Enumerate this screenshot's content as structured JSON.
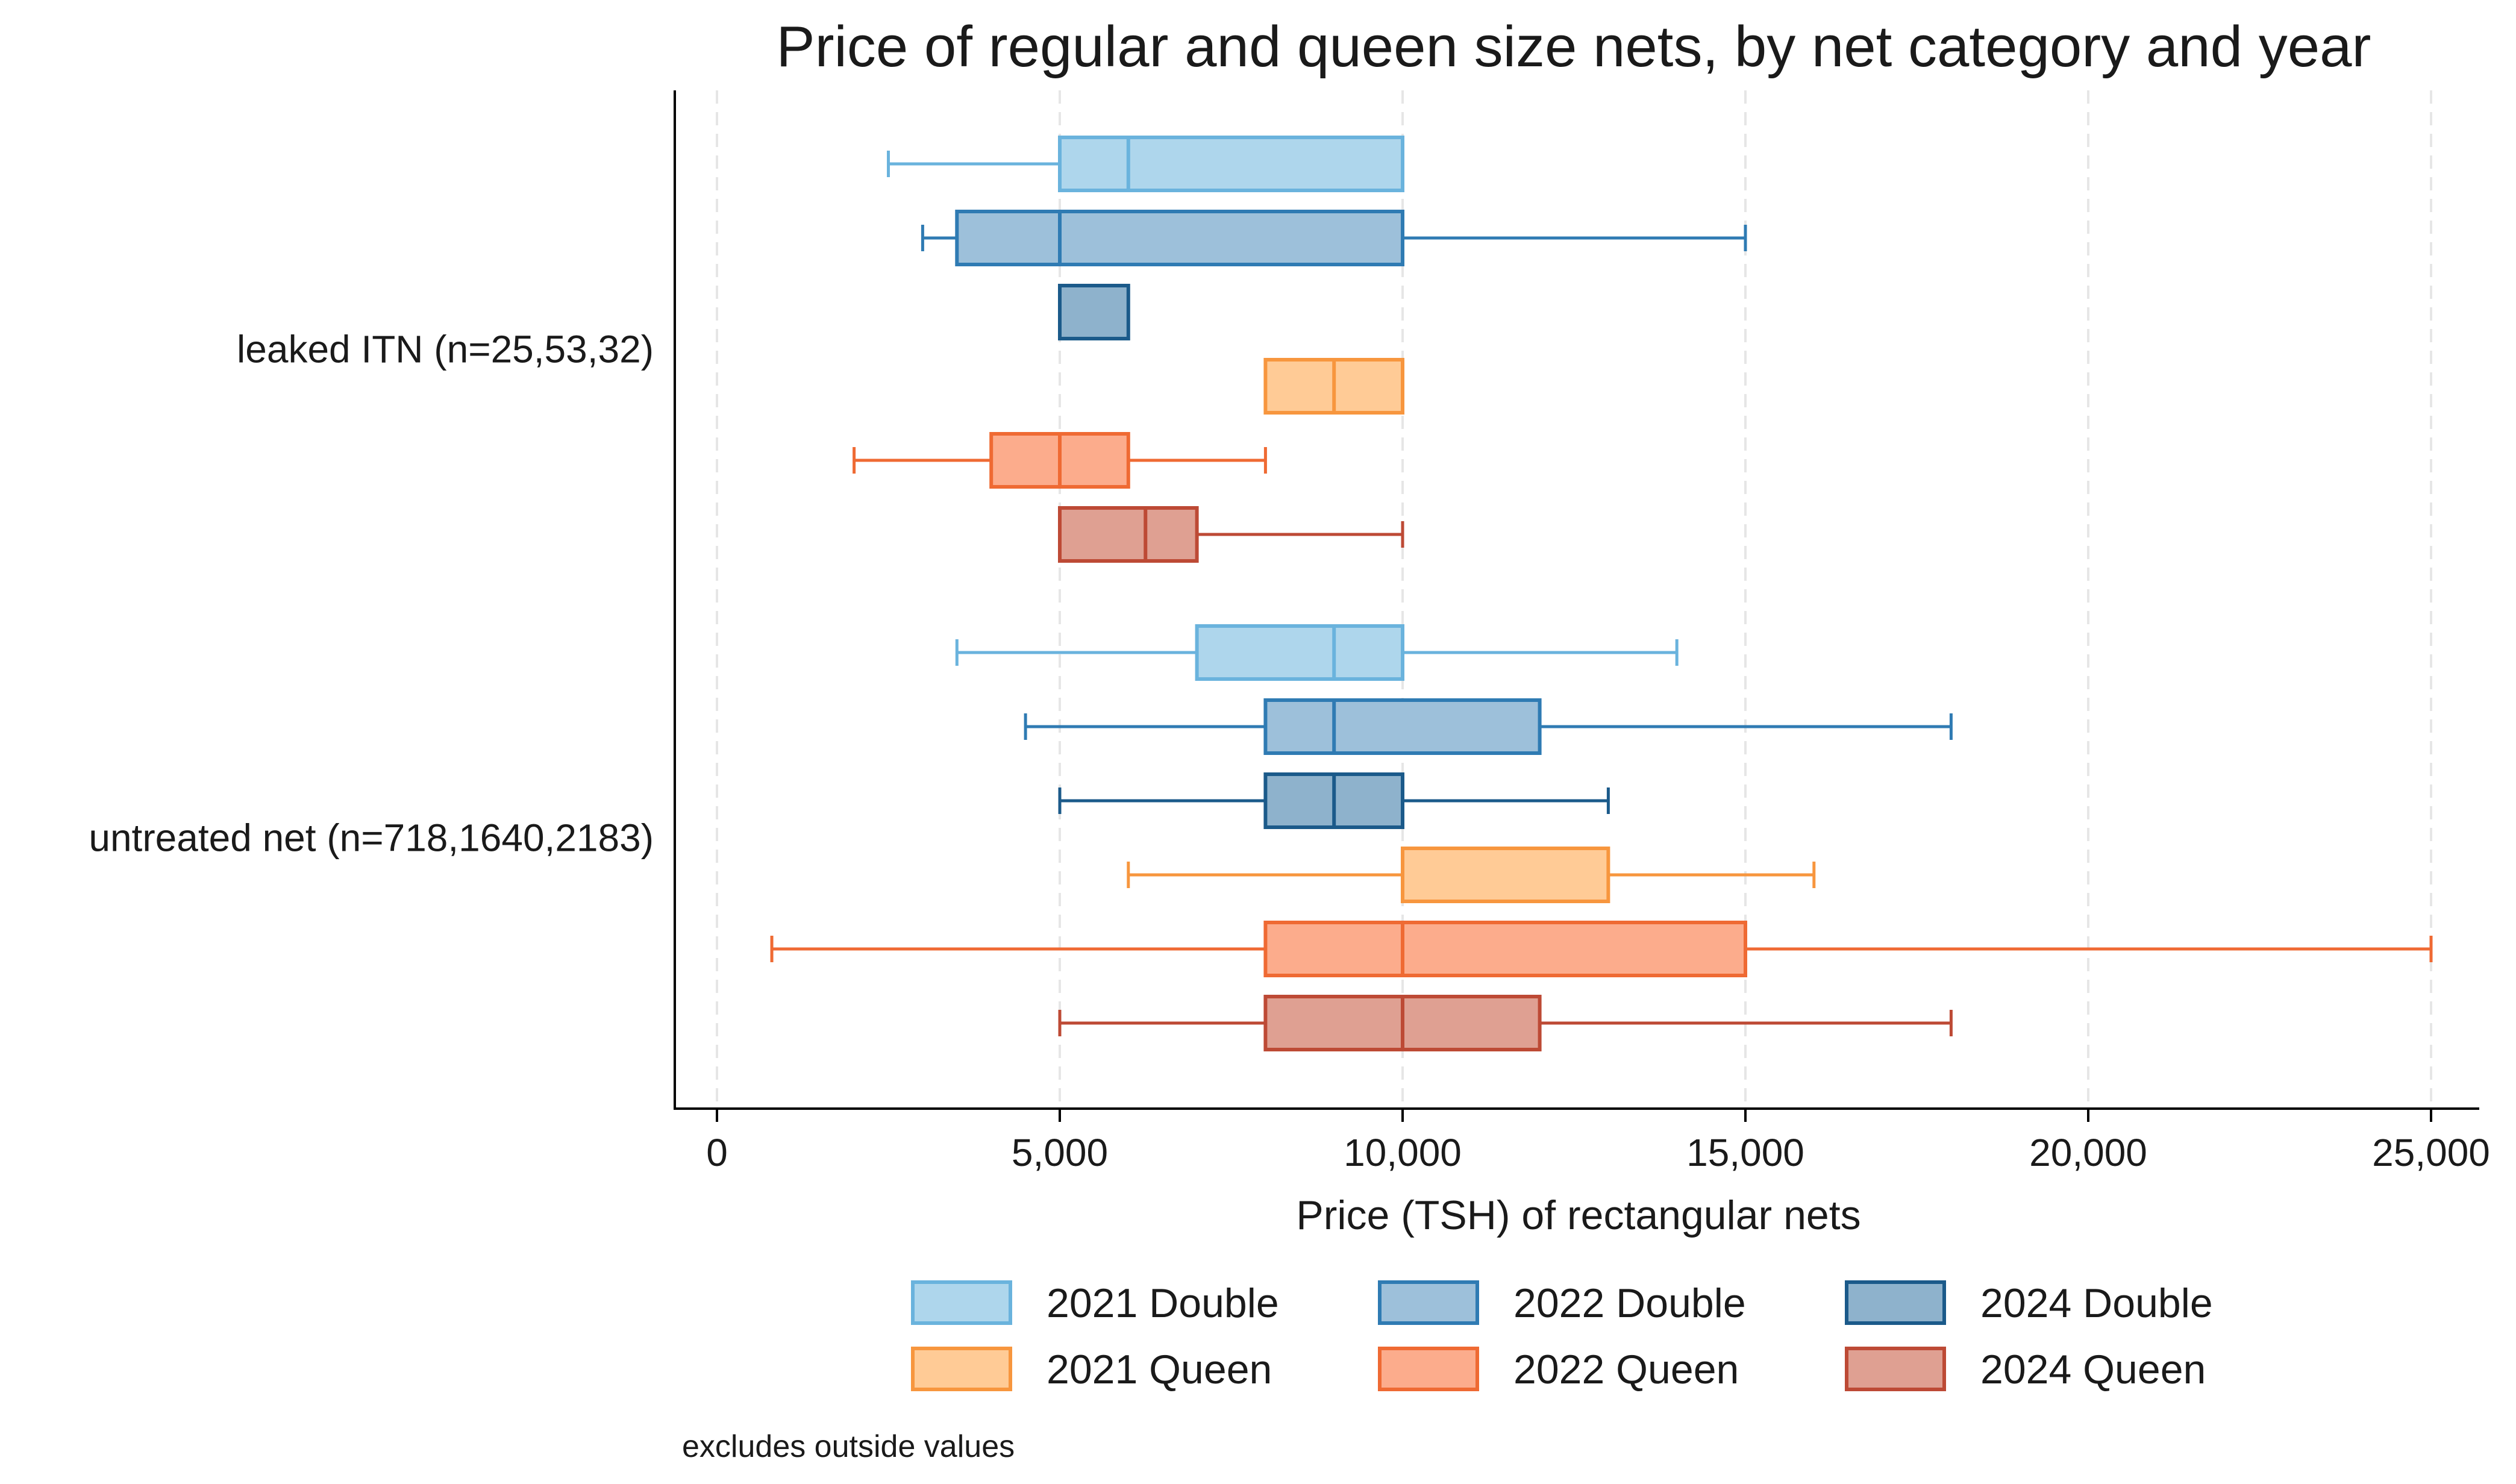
{
  "chart_data": {
    "type": "boxplot-horizontal",
    "title": "Price of regular and queen size nets, by net category and year",
    "xlabel": "Price (TSH) of rectangular nets",
    "xlim": [
      0,
      25000
    ],
    "xticks": [
      0,
      5000,
      10000,
      15000,
      20000,
      25000
    ],
    "xtick_labels": [
      "0",
      "5,000",
      "10,000",
      "15,000",
      "20,000",
      "25,000"
    ],
    "gridlines": "vertical dashed",
    "legend_position": "bottom",
    "note": "excludes outside values",
    "groups": [
      {
        "label": "leaked ITN (n=25,53,32)",
        "boxes": [
          {
            "series": "2021 Double",
            "min": 2500,
            "q1": 5000,
            "median": 6000,
            "q3": 10000,
            "max": 10000
          },
          {
            "series": "2022 Double",
            "min": 3000,
            "q1": 3500,
            "median": 5000,
            "q3": 10000,
            "max": 15000
          },
          {
            "series": "2024 Double",
            "min": 5000,
            "q1": 5000,
            "median": 5000,
            "q3": 6000,
            "max": 6000
          },
          {
            "series": "2021 Queen",
            "min": 8000,
            "q1": 8000,
            "median": 9000,
            "q3": 10000,
            "max": 10000
          },
          {
            "series": "2022 Queen",
            "min": 2000,
            "q1": 4000,
            "median": 5000,
            "q3": 6000,
            "max": 8000
          },
          {
            "series": "2024 Queen",
            "min": 5000,
            "q1": 5000,
            "median": 6250,
            "q3": 7000,
            "max": 10000
          }
        ]
      },
      {
        "label": "untreated net (n=718,1640,2183)",
        "boxes": [
          {
            "series": "2021 Double",
            "min": 3500,
            "q1": 7000,
            "median": 9000,
            "q3": 10000,
            "max": 14000
          },
          {
            "series": "2022 Double",
            "min": 4500,
            "q1": 8000,
            "median": 9000,
            "q3": 12000,
            "max": 18000
          },
          {
            "series": "2024 Double",
            "min": 5000,
            "q1": 8000,
            "median": 9000,
            "q3": 10000,
            "max": 13000
          },
          {
            "series": "2021 Queen",
            "min": 6000,
            "q1": 10000,
            "median": 10000,
            "q3": 13000,
            "max": 16000
          },
          {
            "series": "2022 Queen",
            "min": 800,
            "q1": 8000,
            "median": 10000,
            "q3": 15000,
            "max": 25000
          },
          {
            "series": "2024 Queen",
            "min": 5000,
            "q1": 8000,
            "median": 10000,
            "q3": 12000,
            "max": 18000
          }
        ]
      }
    ],
    "series": [
      {
        "name": "2021 Double",
        "fill": "#aed6ec",
        "stroke": "#6ab3dd"
      },
      {
        "name": "2022 Double",
        "fill": "#9dc0da",
        "stroke": "#2f7bb3"
      },
      {
        "name": "2024 Double",
        "fill": "#8eb2cc",
        "stroke": "#1b5a8a"
      },
      {
        "name": "2021 Queen",
        "fill": "#ffcb96",
        "stroke": "#f7963e"
      },
      {
        "name": "2022 Queen",
        "fill": "#fcac8c",
        "stroke": "#ef6a33"
      },
      {
        "name": "2024 Queen",
        "fill": "#dfa092",
        "stroke": "#bd4a35"
      }
    ]
  }
}
